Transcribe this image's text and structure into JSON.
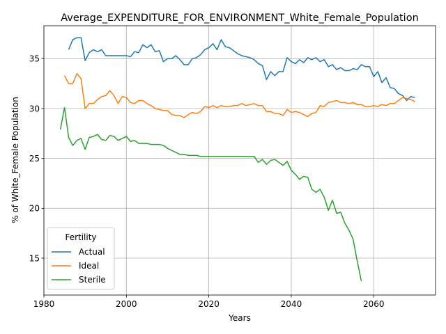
{
  "chart_data": {
    "type": "line",
    "title": "Average_EXPENDITURE_FOR_ENVIRONMENT_White_Female_Population",
    "xlabel": "Years",
    "ylabel": "% of White_Female Population",
    "xlim": [
      1980,
      2075
    ],
    "ylim": [
      11.3,
      38.3
    ],
    "xticks": [
      1980,
      2000,
      2020,
      2040,
      2060
    ],
    "yticks": [
      15,
      20,
      25,
      30,
      35
    ],
    "grid": true,
    "legend": {
      "title": "Fertility",
      "placement": "lower-left",
      "entries": [
        "Actual",
        "Ideal",
        "Sterile"
      ]
    },
    "series": [
      {
        "name": "Actual",
        "color": "#1f77b4",
        "x": [
          1986,
          1987,
          1988,
          1989,
          1990,
          1991,
          1992,
          1993,
          1994,
          1995,
          1996,
          1997,
          1998,
          1999,
          2000,
          2001,
          2002,
          2003,
          2004,
          2005,
          2006,
          2007,
          2008,
          2009,
          2010,
          2011,
          2012,
          2013,
          2014,
          2015,
          2016,
          2017,
          2018,
          2019,
          2020,
          2021,
          2022,
          2023,
          2024,
          2025,
          2026,
          2027,
          2028,
          2029,
          2030,
          2031,
          2032,
          2033,
          2034,
          2035,
          2036,
          2037,
          2038,
          2039,
          2040,
          2041,
          2042,
          2043,
          2044,
          2045,
          2046,
          2047,
          2048,
          2049,
          2050,
          2051,
          2052,
          2053,
          2054,
          2055,
          2056,
          2057,
          2058,
          2059,
          2060,
          2061,
          2062,
          2063,
          2064,
          2065,
          2066,
          2067,
          2068,
          2069,
          2070
        ],
        "values": [
          35.9,
          36.9,
          37.1,
          37.1,
          34.8,
          35.6,
          35.9,
          35.7,
          35.9,
          35.3,
          35.3,
          35.3,
          35.3,
          35.3,
          35.3,
          35.2,
          35.7,
          35.6,
          36.4,
          36.1,
          36.4,
          35.7,
          35.8,
          34.7,
          35.0,
          35.0,
          35.3,
          34.9,
          34.4,
          34.4,
          35.0,
          35.1,
          35.4,
          35.9,
          36.1,
          36.5,
          35.9,
          36.9,
          36.2,
          36.1,
          35.8,
          35.5,
          35.3,
          35.2,
          35.1,
          34.9,
          34.5,
          34.3,
          32.9,
          33.7,
          33.3,
          33.7,
          33.7,
          35.1,
          34.7,
          34.5,
          34.9,
          34.6,
          35.1,
          34.9,
          35.1,
          34.7,
          34.9,
          34.2,
          34.4,
          33.9,
          34.1,
          33.8,
          33.8,
          34.0,
          33.9,
          34.4,
          34.2,
          34.2,
          33.2,
          33.7,
          32.6,
          33.1,
          32.1,
          32.0,
          31.5,
          31.3,
          30.8,
          31.2,
          31.1
        ]
      },
      {
        "name": "Ideal",
        "color": "#ff7f0e",
        "x": [
          1985,
          1986,
          1987,
          1988,
          1989,
          1990,
          1991,
          1992,
          1993,
          1994,
          1995,
          1996,
          1997,
          1998,
          1999,
          2000,
          2001,
          2002,
          2003,
          2004,
          2005,
          2006,
          2007,
          2008,
          2009,
          2010,
          2011,
          2012,
          2013,
          2014,
          2015,
          2016,
          2017,
          2018,
          2019,
          2020,
          2021,
          2022,
          2023,
          2024,
          2025,
          2026,
          2027,
          2028,
          2029,
          2030,
          2031,
          2032,
          2033,
          2034,
          2035,
          2036,
          2037,
          2038,
          2039,
          2040,
          2041,
          2042,
          2043,
          2044,
          2045,
          2046,
          2047,
          2048,
          2049,
          2050,
          2051,
          2052,
          2053,
          2054,
          2055,
          2056,
          2057,
          2058,
          2059,
          2060,
          2061,
          2062,
          2063,
          2064,
          2065,
          2066,
          2067,
          2068,
          2069,
          2070
        ],
        "values": [
          33.3,
          32.5,
          32.5,
          33.5,
          33.0,
          30.0,
          30.5,
          30.5,
          30.9,
          31.2,
          31.3,
          31.8,
          31.3,
          30.5,
          31.2,
          31.1,
          30.6,
          30.5,
          30.8,
          30.8,
          30.5,
          30.3,
          30.0,
          29.9,
          29.8,
          29.8,
          29.4,
          29.3,
          29.3,
          29.1,
          29.4,
          29.6,
          29.5,
          29.7,
          30.2,
          30.1,
          30.3,
          30.1,
          30.3,
          30.2,
          30.2,
          30.3,
          30.3,
          30.5,
          30.3,
          30.4,
          30.5,
          30.3,
          30.3,
          29.7,
          29.7,
          29.5,
          29.5,
          29.3,
          29.9,
          29.6,
          29.7,
          29.6,
          29.4,
          29.2,
          29.5,
          29.6,
          30.3,
          30.2,
          30.6,
          30.7,
          30.8,
          30.6,
          30.6,
          30.5,
          30.6,
          30.4,
          30.4,
          30.2,
          30.2,
          30.3,
          30.2,
          30.4,
          30.3,
          30.5,
          30.5,
          30.8,
          31.1,
          31.0,
          30.9,
          30.7
        ]
      },
      {
        "name": "Sterile",
        "color": "#2ca02c",
        "x": [
          1984,
          1985,
          1986,
          1987,
          1988,
          1989,
          1990,
          1991,
          1992,
          1993,
          1994,
          1995,
          1996,
          1997,
          1998,
          1999,
          2000,
          2001,
          2002,
          2003,
          2004,
          2005,
          2006,
          2007,
          2008,
          2009,
          2010,
          2011,
          2012,
          2013,
          2014,
          2015,
          2016,
          2017,
          2018,
          2019,
          2020,
          2021,
          2022,
          2023,
          2024,
          2025,
          2026,
          2027,
          2028,
          2029,
          2030,
          2031,
          2032,
          2033,
          2034,
          2035,
          2036,
          2037,
          2038,
          2039,
          2040,
          2041,
          2042,
          2043,
          2044,
          2045,
          2046,
          2047,
          2048,
          2049,
          2050,
          2051,
          2052,
          2053,
          2054,
          2055,
          2056,
          2057
        ],
        "values": [
          27.9,
          30.1,
          27.1,
          26.3,
          26.8,
          27.0,
          25.9,
          27.1,
          27.2,
          27.4,
          26.9,
          26.8,
          27.3,
          27.2,
          26.8,
          27.0,
          27.2,
          26.7,
          26.8,
          26.5,
          26.5,
          26.5,
          26.4,
          26.4,
          26.4,
          26.3,
          26.0,
          25.8,
          25.6,
          25.4,
          25.4,
          25.3,
          25.3,
          25.3,
          25.2,
          25.2,
          25.2,
          25.2,
          25.2,
          25.2,
          25.2,
          25.2,
          25.2,
          25.2,
          25.2,
          25.2,
          25.2,
          25.2,
          24.6,
          24.9,
          24.4,
          24.8,
          24.9,
          24.6,
          24.3,
          24.7,
          23.8,
          23.4,
          22.9,
          23.2,
          23.1,
          21.9,
          21.6,
          21.9,
          21.1,
          19.8,
          20.8,
          19.5,
          19.6,
          18.5,
          17.8,
          16.9,
          14.7,
          12.7
        ]
      }
    ]
  }
}
